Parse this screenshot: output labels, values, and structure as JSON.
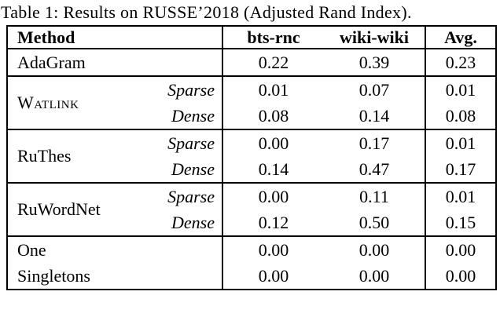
{
  "page": {
    "background_color": "#ffffff",
    "text_color": "#000000"
  },
  "caption": "Table 1: Results on RUSSE’2018 (Adjusted Rand Index).",
  "table": {
    "columns": [
      "Method",
      "bts-rnc",
      "wiki-wiki",
      "Avg."
    ],
    "methods": [
      {
        "name": "AdaGram",
        "smallcaps": false,
        "divider_above": true,
        "rows": [
          {
            "variant": "",
            "values": [
              "0.22",
              "0.39",
              "0.23"
            ]
          }
        ]
      },
      {
        "name": "Watlink",
        "smallcaps": true,
        "divider_above": true,
        "rows": [
          {
            "variant": "Sparse",
            "values": [
              "0.01",
              "0.07",
              "0.01"
            ]
          },
          {
            "variant": "Dense",
            "values": [
              "0.08",
              "0.14",
              "0.08"
            ]
          }
        ]
      },
      {
        "name": "RuThes",
        "smallcaps": false,
        "divider_above": true,
        "rows": [
          {
            "variant": "Sparse",
            "values": [
              "0.00",
              "0.17",
              "0.01"
            ]
          },
          {
            "variant": "Dense",
            "values": [
              "0.14",
              "0.47",
              "0.17"
            ]
          }
        ]
      },
      {
        "name": "RuWordNet",
        "smallcaps": false,
        "divider_above": true,
        "rows": [
          {
            "variant": "Sparse",
            "values": [
              "0.00",
              "0.11",
              "0.01"
            ]
          },
          {
            "variant": "Dense",
            "values": [
              "0.12",
              "0.50",
              "0.15"
            ]
          }
        ]
      },
      {
        "name": "One",
        "smallcaps": false,
        "divider_above": true,
        "rows": [
          {
            "variant": "",
            "values": [
              "0.00",
              "0.00",
              "0.00"
            ]
          }
        ]
      },
      {
        "name": "Singletons",
        "smallcaps": false,
        "divider_above": false,
        "rows": [
          {
            "variant": "",
            "values": [
              "0.00",
              "0.00",
              "0.00"
            ]
          }
        ]
      }
    ]
  }
}
